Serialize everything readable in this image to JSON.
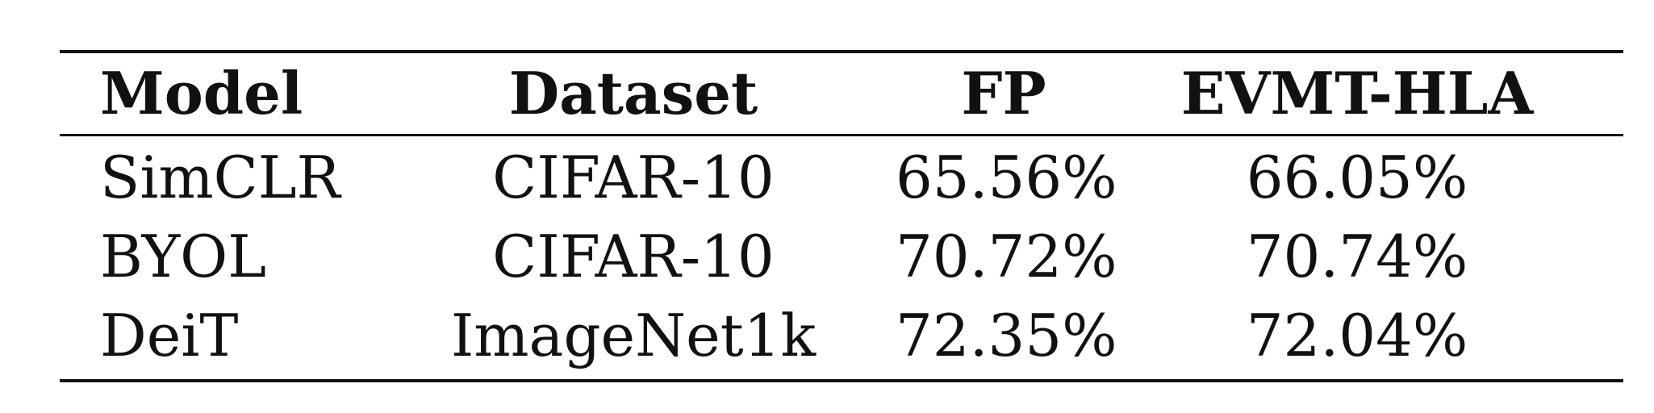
{
  "table": {
    "headers": [
      "Model",
      "Dataset",
      "FP",
      "EVMT-HLA"
    ],
    "rows": [
      [
        "SimCLR",
        "CIFAR-10",
        "65.56%",
        "66.05%"
      ],
      [
        "BYOL",
        "CIFAR-10",
        "70.72%",
        "70.74%"
      ],
      [
        "DeiT",
        "ImageNet1k",
        "72.35%",
        "72.04%"
      ]
    ]
  }
}
